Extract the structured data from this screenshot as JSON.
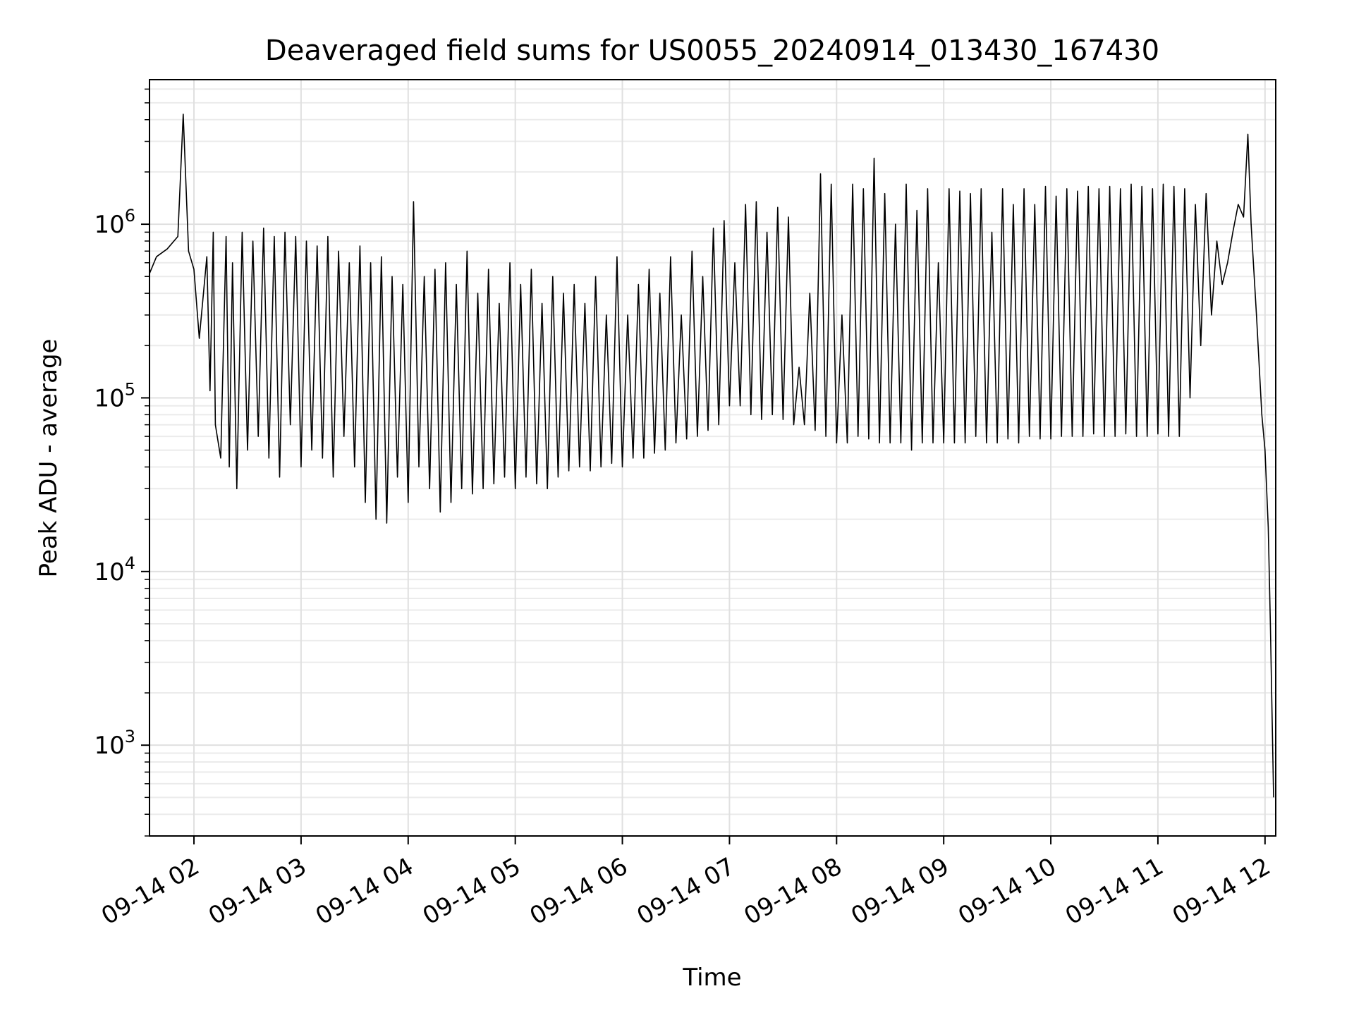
{
  "chart_data": {
    "type": "line",
    "title": "Deaveraged field sums for US0055_20240914_013430_167430",
    "xlabel": "Time",
    "ylabel": "Peak ADU - average",
    "yscale": "log",
    "ylim": [
      300,
      6800000
    ],
    "xlim_hours": [
      1.585,
      12.1
    ],
    "grid": true,
    "legend": "none",
    "line_color": "#000000",
    "x_ticks": [
      {
        "label": "09-14 02",
        "hour": 2
      },
      {
        "label": "09-14 03",
        "hour": 3
      },
      {
        "label": "09-14 04",
        "hour": 4
      },
      {
        "label": "09-14 05",
        "hour": 5
      },
      {
        "label": "09-14 06",
        "hour": 6
      },
      {
        "label": "09-14 07",
        "hour": 7
      },
      {
        "label": "09-14 08",
        "hour": 8
      },
      {
        "label": "09-14 09",
        "hour": 9
      },
      {
        "label": "09-14 10",
        "hour": 10
      },
      {
        "label": "09-14 11",
        "hour": 11
      },
      {
        "label": "09-14 12",
        "hour": 12
      }
    ],
    "y_ticks": [
      {
        "base": "10",
        "exp": "3",
        "value": 1000
      },
      {
        "base": "10",
        "exp": "4",
        "value": 10000
      },
      {
        "base": "10",
        "exp": "5",
        "value": 100000
      },
      {
        "base": "10",
        "exp": "6",
        "value": 1000000
      }
    ],
    "series": [
      {
        "points": [
          [
            1.585,
            520000
          ],
          [
            1.65,
            650000
          ],
          [
            1.75,
            720000
          ],
          [
            1.85,
            850000
          ],
          [
            1.9,
            4300000
          ],
          [
            1.95,
            700000
          ],
          [
            2.0,
            550000
          ],
          [
            2.05,
            220000
          ],
          [
            2.12,
            650000
          ],
          [
            2.15,
            110000
          ],
          [
            2.18,
            900000
          ],
          [
            2.2,
            70000
          ],
          [
            2.25,
            45000
          ],
          [
            2.3,
            850000
          ],
          [
            2.33,
            40000
          ],
          [
            2.36,
            600000
          ],
          [
            2.4,
            30000
          ],
          [
            2.45,
            900000
          ],
          [
            2.5,
            50000
          ],
          [
            2.55,
            800000
          ],
          [
            2.6,
            60000
          ],
          [
            2.65,
            950000
          ],
          [
            2.7,
            45000
          ],
          [
            2.75,
            850000
          ],
          [
            2.8,
            35000
          ],
          [
            2.85,
            900000
          ],
          [
            2.9,
            70000
          ],
          [
            2.95,
            850000
          ],
          [
            3.0,
            40000
          ],
          [
            3.05,
            800000
          ],
          [
            3.1,
            50000
          ],
          [
            3.15,
            750000
          ],
          [
            3.2,
            45000
          ],
          [
            3.25,
            850000
          ],
          [
            3.3,
            35000
          ],
          [
            3.35,
            700000
          ],
          [
            3.4,
            60000
          ],
          [
            3.45,
            600000
          ],
          [
            3.5,
            40000
          ],
          [
            3.55,
            750000
          ],
          [
            3.6,
            25000
          ],
          [
            3.65,
            600000
          ],
          [
            3.7,
            20000
          ],
          [
            3.75,
            650000
          ],
          [
            3.8,
            19000
          ],
          [
            3.85,
            500000
          ],
          [
            3.9,
            35000
          ],
          [
            3.95,
            450000
          ],
          [
            4.0,
            25000
          ],
          [
            4.05,
            1350000
          ],
          [
            4.1,
            40000
          ],
          [
            4.15,
            500000
          ],
          [
            4.2,
            30000
          ],
          [
            4.25,
            550000
          ],
          [
            4.3,
            22000
          ],
          [
            4.35,
            600000
          ],
          [
            4.4,
            25000
          ],
          [
            4.45,
            450000
          ],
          [
            4.5,
            30000
          ],
          [
            4.55,
            700000
          ],
          [
            4.6,
            28000
          ],
          [
            4.65,
            400000
          ],
          [
            4.7,
            30000
          ],
          [
            4.75,
            550000
          ],
          [
            4.8,
            32000
          ],
          [
            4.85,
            350000
          ],
          [
            4.9,
            35000
          ],
          [
            4.95,
            600000
          ],
          [
            5.0,
            30000
          ],
          [
            5.05,
            450000
          ],
          [
            5.1,
            35000
          ],
          [
            5.15,
            550000
          ],
          [
            5.2,
            32000
          ],
          [
            5.25,
            350000
          ],
          [
            5.3,
            30000
          ],
          [
            5.35,
            500000
          ],
          [
            5.4,
            35000
          ],
          [
            5.45,
            400000
          ],
          [
            5.5,
            38000
          ],
          [
            5.55,
            450000
          ],
          [
            5.6,
            40000
          ],
          [
            5.65,
            350000
          ],
          [
            5.7,
            38000
          ],
          [
            5.75,
            500000
          ],
          [
            5.8,
            40000
          ],
          [
            5.85,
            300000
          ],
          [
            5.9,
            42000
          ],
          [
            5.95,
            650000
          ],
          [
            6.0,
            40000
          ],
          [
            6.05,
            300000
          ],
          [
            6.1,
            45000
          ],
          [
            6.15,
            450000
          ],
          [
            6.2,
            45000
          ],
          [
            6.25,
            550000
          ],
          [
            6.3,
            48000
          ],
          [
            6.35,
            400000
          ],
          [
            6.4,
            50000
          ],
          [
            6.45,
            650000
          ],
          [
            6.5,
            55000
          ],
          [
            6.55,
            300000
          ],
          [
            6.6,
            58000
          ],
          [
            6.65,
            700000
          ],
          [
            6.7,
            60000
          ],
          [
            6.75,
            500000
          ],
          [
            6.8,
            65000
          ],
          [
            6.85,
            950000
          ],
          [
            6.9,
            70000
          ],
          [
            6.95,
            1050000
          ],
          [
            7.0,
            90000
          ],
          [
            7.05,
            600000
          ],
          [
            7.1,
            90000
          ],
          [
            7.15,
            1300000
          ],
          [
            7.2,
            80000
          ],
          [
            7.25,
            1350000
          ],
          [
            7.3,
            75000
          ],
          [
            7.35,
            900000
          ],
          [
            7.4,
            80000
          ],
          [
            7.45,
            1250000
          ],
          [
            7.5,
            75000
          ],
          [
            7.55,
            1100000
          ],
          [
            7.6,
            70000
          ],
          [
            7.65,
            150000
          ],
          [
            7.7,
            70000
          ],
          [
            7.75,
            400000
          ],
          [
            7.8,
            65000
          ],
          [
            7.85,
            1950000
          ],
          [
            7.9,
            60000
          ],
          [
            7.95,
            1700000
          ],
          [
            8.0,
            55000
          ],
          [
            8.05,
            300000
          ],
          [
            8.1,
            55000
          ],
          [
            8.15,
            1700000
          ],
          [
            8.2,
            60000
          ],
          [
            8.25,
            1600000
          ],
          [
            8.3,
            58000
          ],
          [
            8.35,
            2400000
          ],
          [
            8.4,
            55000
          ],
          [
            8.45,
            1500000
          ],
          [
            8.5,
            55000
          ],
          [
            8.55,
            1000000
          ],
          [
            8.6,
            55000
          ],
          [
            8.65,
            1700000
          ],
          [
            8.7,
            50000
          ],
          [
            8.75,
            1200000
          ],
          [
            8.8,
            55000
          ],
          [
            8.85,
            1600000
          ],
          [
            8.9,
            55000
          ],
          [
            8.95,
            600000
          ],
          [
            9.0,
            55000
          ],
          [
            9.05,
            1600000
          ],
          [
            9.1,
            55000
          ],
          [
            9.15,
            1550000
          ],
          [
            9.2,
            55000
          ],
          [
            9.25,
            1500000
          ],
          [
            9.3,
            60000
          ],
          [
            9.35,
            1600000
          ],
          [
            9.4,
            55000
          ],
          [
            9.45,
            900000
          ],
          [
            9.5,
            55000
          ],
          [
            9.55,
            1600000
          ],
          [
            9.6,
            58000
          ],
          [
            9.65,
            1300000
          ],
          [
            9.7,
            55000
          ],
          [
            9.75,
            1600000
          ],
          [
            9.8,
            60000
          ],
          [
            9.85,
            1300000
          ],
          [
            9.9,
            58000
          ],
          [
            9.95,
            1650000
          ],
          [
            10.0,
            58000
          ],
          [
            10.05,
            1450000
          ],
          [
            10.1,
            60000
          ],
          [
            10.15,
            1600000
          ],
          [
            10.2,
            60000
          ],
          [
            10.25,
            1550000
          ],
          [
            10.3,
            60000
          ],
          [
            10.35,
            1650000
          ],
          [
            10.4,
            62000
          ],
          [
            10.45,
            1600000
          ],
          [
            10.5,
            60000
          ],
          [
            10.55,
            1650000
          ],
          [
            10.6,
            60000
          ],
          [
            10.65,
            1600000
          ],
          [
            10.7,
            62000
          ],
          [
            10.75,
            1700000
          ],
          [
            10.8,
            60000
          ],
          [
            10.85,
            1650000
          ],
          [
            10.9,
            60000
          ],
          [
            10.95,
            1600000
          ],
          [
            11.0,
            62000
          ],
          [
            11.05,
            1700000
          ],
          [
            11.1,
            60000
          ],
          [
            11.15,
            1650000
          ],
          [
            11.2,
            60000
          ],
          [
            11.25,
            1600000
          ],
          [
            11.3,
            100000
          ],
          [
            11.35,
            1300000
          ],
          [
            11.4,
            200000
          ],
          [
            11.45,
            1500000
          ],
          [
            11.5,
            300000
          ],
          [
            11.55,
            800000
          ],
          [
            11.6,
            450000
          ],
          [
            11.65,
            600000
          ],
          [
            11.7,
            900000
          ],
          [
            11.75,
            1300000
          ],
          [
            11.8,
            1100000
          ],
          [
            11.84,
            3300000
          ],
          [
            11.87,
            1000000
          ],
          [
            11.92,
            300000
          ],
          [
            11.97,
            80000
          ],
          [
            12.0,
            50000
          ],
          [
            12.03,
            18000
          ],
          [
            12.05,
            5000
          ],
          [
            12.08,
            500
          ]
        ]
      }
    ]
  }
}
